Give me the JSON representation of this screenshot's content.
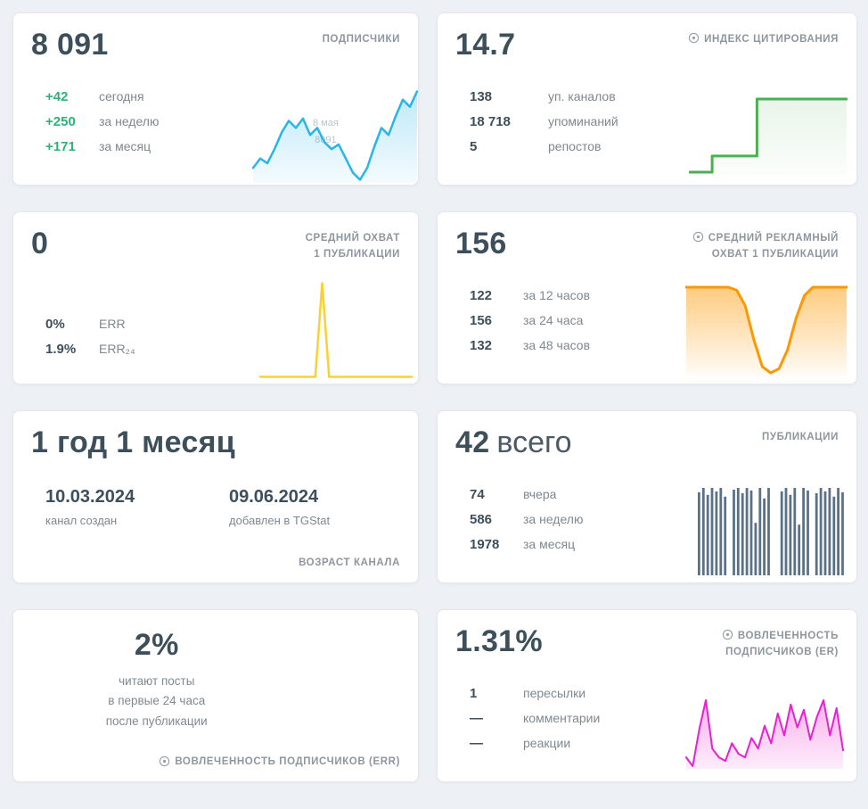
{
  "colors": {
    "positive_green": "#2fb179",
    "subscribers_blue": "#29b5ea",
    "citation_green": "#4caf50",
    "reach_yellow": "#fdd032",
    "ad_reach_orange": "#fe9800",
    "publications_slate": "#5b7286",
    "er_magenta": "#ea1fd3",
    "value_dark": "#3d4f5b",
    "label_gray": "#7e8890",
    "page_bg": "#edf0f4"
  },
  "cards": {
    "subscribers": {
      "value": "8 091",
      "title": "ПОДПИСЧИКИ",
      "tooltip": [
        "8 мая",
        "8091"
      ],
      "stats": [
        {
          "value": "+42",
          "label": "сегодня"
        },
        {
          "value": "+250",
          "label": "за неделю"
        },
        {
          "value": "+171",
          "label": "за месяц"
        }
      ],
      "chart": {
        "type": "area",
        "color": "#29b5ea",
        "stroke_width": 2.5,
        "fill_top": "rgba(41,181,234,0.30)",
        "fill_bottom": "rgba(41,181,234,0.05)",
        "values": [
          30,
          38,
          34,
          46,
          60,
          70,
          64,
          72,
          58,
          64,
          52,
          46,
          50,
          38,
          26,
          20,
          30,
          48,
          64,
          58,
          74,
          88,
          82,
          95
        ]
      }
    },
    "citation": {
      "value": "14.7",
      "title": "ИНДЕКС ЦИТИРОВАНИЯ",
      "stats": [
        {
          "value": "138",
          "label": "уп. каналов"
        },
        {
          "value": "18 718",
          "label": "упоминаний"
        },
        {
          "value": "5",
          "label": "репостов"
        }
      ],
      "chart": {
        "type": "step",
        "color": "#4caf50",
        "stroke_width": 3,
        "fill_top": "rgba(76,175,80,0.13)",
        "fill_bottom": "rgba(76,175,80,0.02)",
        "values": [
          8,
          25,
          25,
          85,
          85,
          85,
          85,
          85
        ]
      }
    },
    "avg_reach": {
      "value": "0",
      "title_lines": [
        "СРЕДНИЙ ОХВАТ",
        "1 ПУБЛИКАЦИИ"
      ],
      "stats": [
        {
          "value": "0%",
          "label": "ERR"
        },
        {
          "value": "1.9%",
          "label": "ERR₂₄"
        }
      ],
      "chart": {
        "type": "line",
        "color": "#fdd032",
        "stroke_width": 2.5,
        "values": [
          3,
          3,
          3,
          3,
          3,
          3,
          3,
          3,
          3,
          95,
          3,
          3,
          3,
          3,
          3,
          3,
          3,
          3,
          3,
          3,
          3,
          3,
          3
        ]
      }
    },
    "ad_reach": {
      "value": "156",
      "title_lines": [
        "СРЕДНИЙ РЕКЛАМНЫЙ",
        "ОХВАТ 1 ПУБЛИКАЦИИ"
      ],
      "stats": [
        {
          "value": "122",
          "label": "за 12 часов"
        },
        {
          "value": "156",
          "label": "за 24 часа"
        },
        {
          "value": "132",
          "label": "за 48 часов"
        }
      ],
      "chart": {
        "type": "area",
        "color": "#fe9800",
        "stroke_width": 3,
        "fill_top": "rgba(254,152,0,0.50)",
        "fill_bottom": "rgba(254,152,0,0.03)",
        "values": [
          90,
          90,
          90,
          90,
          90,
          90,
          87,
          72,
          40,
          14,
          8,
          12,
          30,
          60,
          82,
          90,
          90,
          90,
          90,
          90
        ]
      }
    },
    "age": {
      "value": "1 год 1 месяц",
      "dates": [
        {
          "value": "10.03.2024",
          "label": "канал создан"
        },
        {
          "value": "09.06.2024",
          "label": "добавлен в TGStat"
        }
      ],
      "footer": "ВОЗРАСТ КАНАЛА"
    },
    "publications": {
      "value": "42",
      "suffix": "всего",
      "title": "ПУБЛИКАЦИИ",
      "stats": [
        {
          "value": "74",
          "label": "вчера"
        },
        {
          "value": "586",
          "label": "за неделю"
        },
        {
          "value": "1978",
          "label": "за месяц"
        }
      ],
      "chart": {
        "type": "bars",
        "color": "#5b7286",
        "values": [
          95,
          100,
          92,
          100,
          96,
          100,
          90,
          0,
          98,
          100,
          94,
          100,
          97,
          60,
          100,
          88,
          100,
          0,
          0,
          96,
          100,
          92,
          100,
          58,
          100,
          97,
          0,
          94,
          100,
          96,
          100,
          90,
          100,
          95
        ]
      }
    },
    "err": {
      "value": "2%",
      "description": [
        "читают посты",
        "в первые 24 часа",
        "после публикации"
      ],
      "footer": "ВОВЛЕЧЕННОСТЬ ПОДПИСЧИКОВ (ERR)"
    },
    "er": {
      "value": "1.31%",
      "title_lines": [
        "ВОВЛЕЧЕННОСТЬ",
        "ПОДПИСЧИКОВ (ER)"
      ],
      "stats": [
        {
          "value": "1",
          "label": "пересылки"
        },
        {
          "value": "—",
          "label": "комментарии"
        },
        {
          "value": "—",
          "label": "реакции"
        }
      ],
      "chart": {
        "type": "area",
        "color": "#ea1fd3",
        "stroke_width": 2,
        "fill_top": "rgba(240,70,210,0.42)",
        "fill_bottom": "rgba(240,70,210,0.10)",
        "values": [
          30,
          20,
          62,
          95,
          40,
          30,
          26,
          46,
          34,
          30,
          52,
          40,
          66,
          46,
          80,
          55,
          90,
          64,
          84,
          50,
          76,
          95,
          55,
          86,
          38
        ]
      }
    }
  }
}
